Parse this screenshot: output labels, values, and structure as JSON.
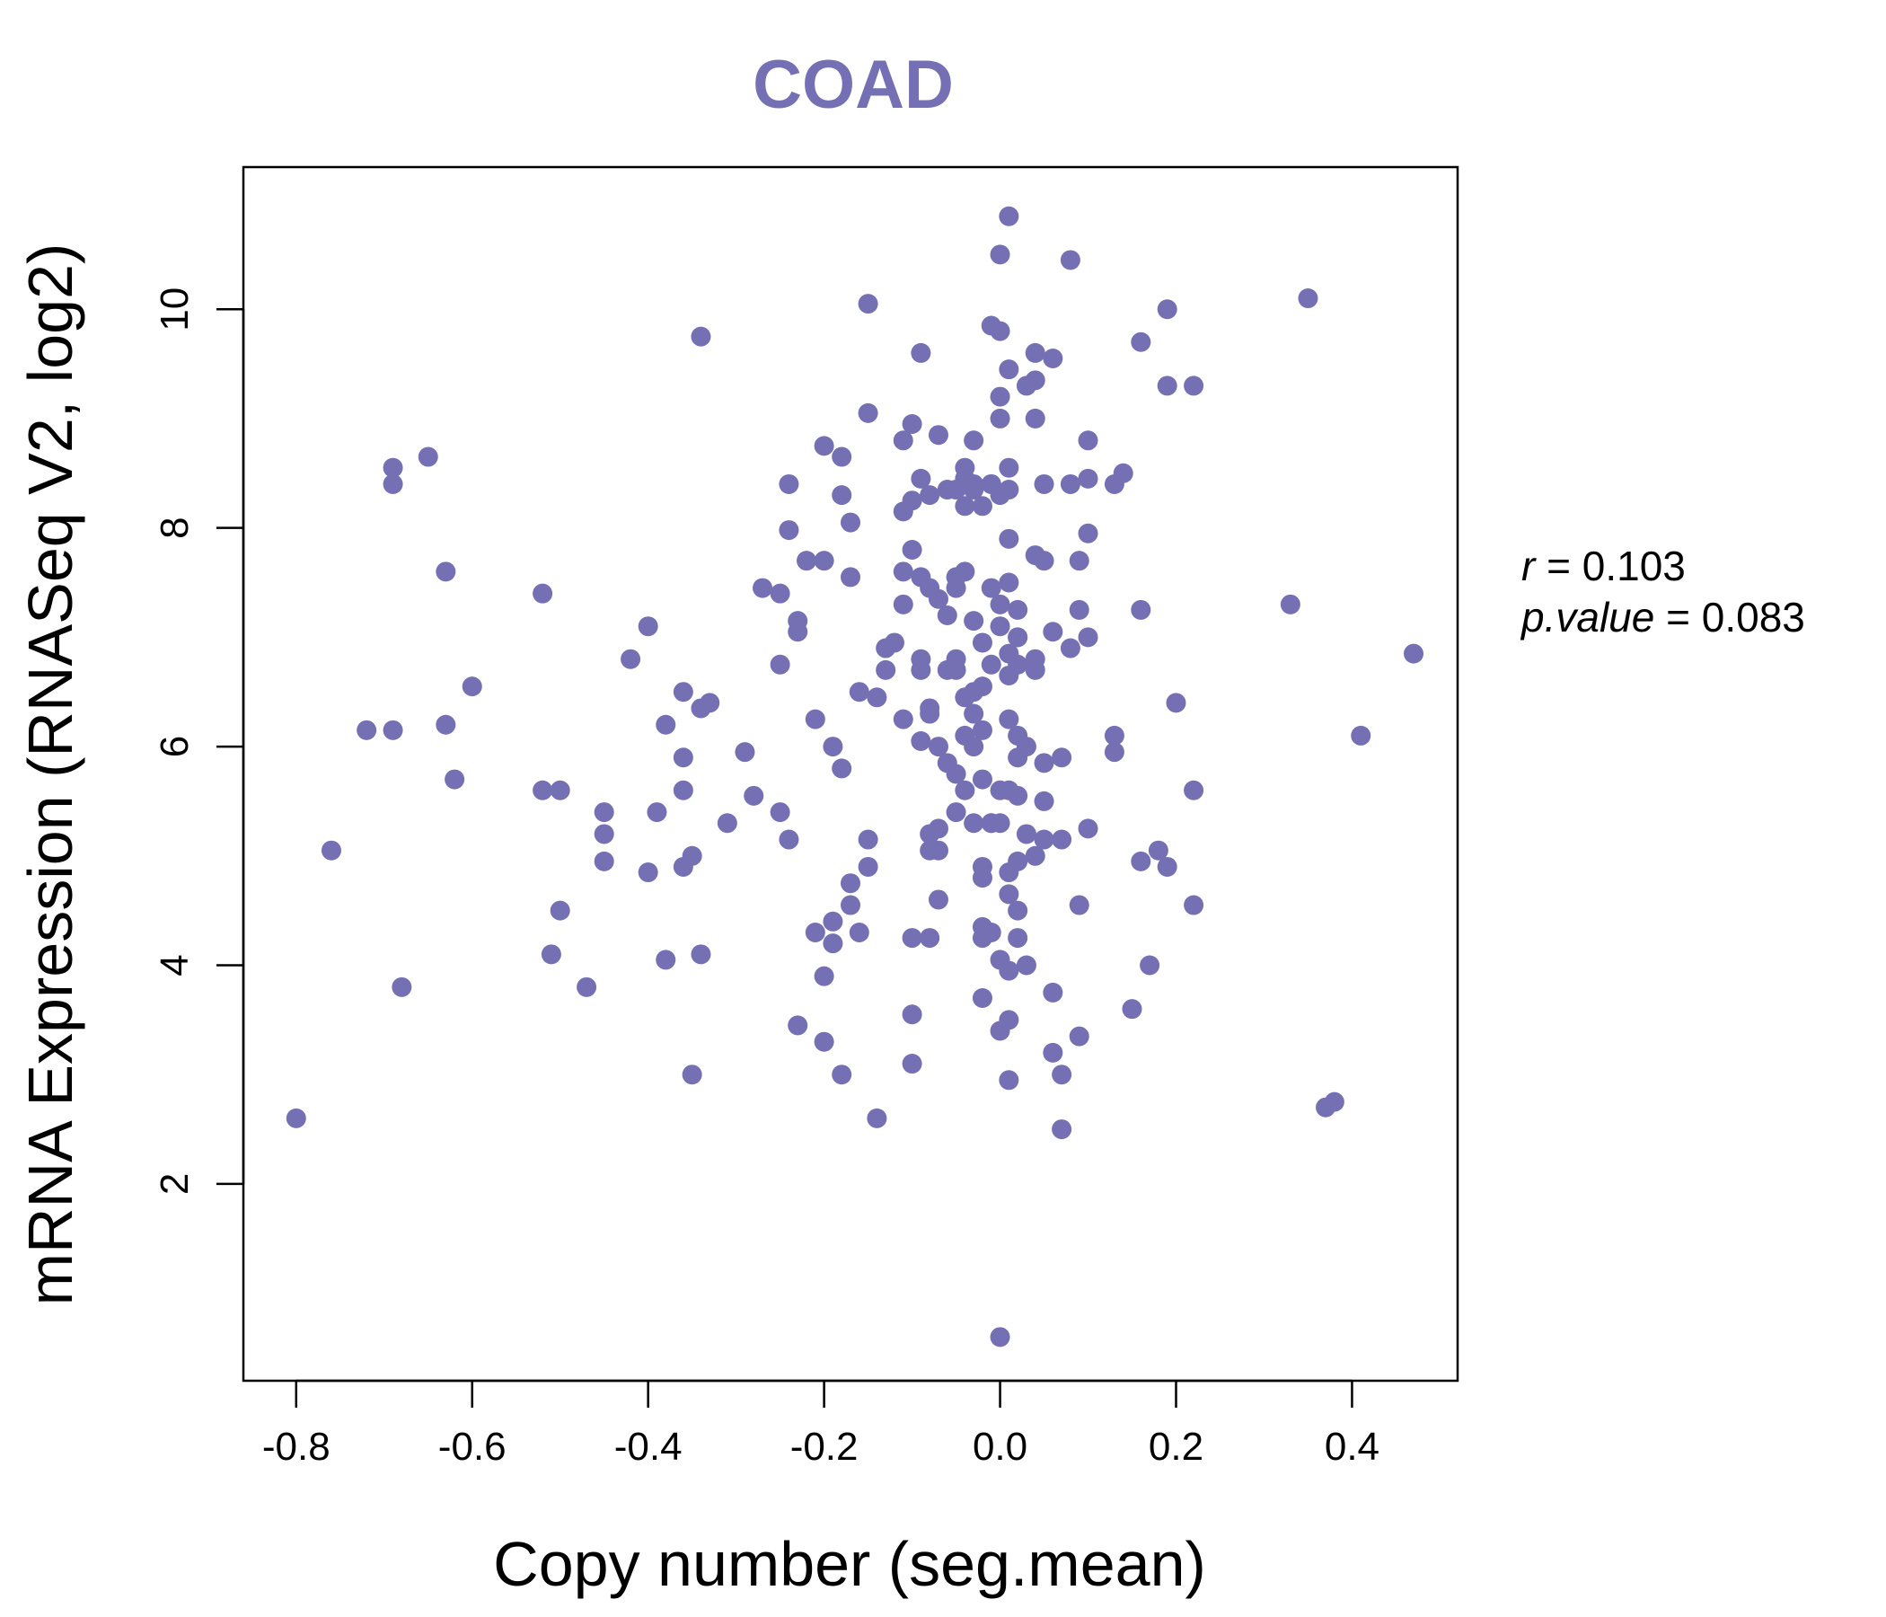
{
  "chart_data": {
    "type": "scatter",
    "title": "COAD",
    "xlabel": "Copy number (seg.mean)",
    "ylabel": "mRNA Expression (RNASeq V2, log2)",
    "xlim": [
      -0.86,
      0.52
    ],
    "ylim": [
      0.2,
      11.3
    ],
    "x_ticks": [
      -0.8,
      -0.6,
      -0.4,
      -0.2,
      0.0,
      0.2,
      0.4
    ],
    "x_tick_labels": [
      "-0.8",
      "-0.6",
      "-0.4",
      "-0.2",
      "0.0",
      "0.2",
      "0.4"
    ],
    "y_ticks": [
      2,
      4,
      6,
      8,
      10
    ],
    "y_tick_labels": [
      "2",
      "4",
      "6",
      "8",
      "10"
    ],
    "point_color": "#7570b3",
    "stats": {
      "r_label": "r",
      "r_value": "0.103",
      "p_label": "p.value",
      "p_value": "0.083"
    },
    "x": [
      -0.8,
      -0.76,
      -0.72,
      -0.69,
      -0.69,
      -0.69,
      -0.68,
      -0.65,
      -0.63,
      -0.63,
      -0.62,
      -0.6,
      -0.52,
      -0.52,
      -0.51,
      -0.5,
      -0.5,
      -0.47,
      -0.45,
      -0.45,
      -0.45,
      -0.42,
      -0.4,
      -0.4,
      -0.39,
      -0.38,
      -0.38,
      -0.36,
      -0.36,
      -0.36,
      -0.36,
      -0.35,
      -0.35,
      -0.34,
      -0.34,
      -0.34,
      -0.33,
      -0.31,
      -0.29,
      -0.28,
      -0.27,
      -0.25,
      -0.25,
      -0.25,
      -0.24,
      -0.24,
      -0.23,
      -0.23,
      -0.23,
      -0.24,
      -0.22,
      -0.21,
      -0.21,
      -0.2,
      -0.2,
      -0.2,
      -0.2,
      -0.19,
      -0.19,
      -0.19,
      -0.18,
      -0.18,
      -0.18,
      -0.18,
      -0.17,
      -0.17,
      -0.17,
      -0.17,
      -0.16,
      -0.16,
      -0.15,
      -0.15,
      -0.15,
      -0.15,
      -0.14,
      -0.14,
      -0.13,
      -0.13,
      -0.12,
      -0.11,
      -0.11,
      -0.11,
      -0.11,
      -0.11,
      -0.1,
      -0.1,
      -0.1,
      -0.1,
      -0.1,
      -0.1,
      -0.09,
      -0.09,
      -0.09,
      -0.09,
      -0.09,
      -0.09,
      -0.08,
      -0.08,
      -0.08,
      -0.08,
      -0.08,
      -0.08,
      -0.08,
      -0.07,
      -0.07,
      -0.07,
      -0.07,
      -0.07,
      -0.07,
      -0.06,
      -0.06,
      -0.06,
      -0.06,
      -0.05,
      -0.05,
      -0.05,
      -0.05,
      -0.05,
      -0.05,
      -0.05,
      -0.04,
      -0.04,
      -0.04,
      -0.04,
      -0.04,
      -0.04,
      -0.04,
      -0.03,
      -0.03,
      -0.03,
      -0.03,
      -0.03,
      -0.03,
      -0.03,
      -0.03,
      -0.02,
      -0.02,
      -0.02,
      -0.02,
      -0.02,
      -0.02,
      -0.02,
      -0.02,
      -0.02,
      -0.02,
      -0.01,
      -0.01,
      -0.01,
      -0.01,
      -0.01,
      -0.01,
      -0.01,
      -0.01,
      0.0,
      0.0,
      0.0,
      0.0,
      0.0,
      0.0,
      0.0,
      0.0,
      0.0,
      0.0,
      0.0,
      0.0,
      0.01,
      0.01,
      0.01,
      0.01,
      0.01,
      0.01,
      0.01,
      0.01,
      0.01,
      0.01,
      0.01,
      0.01,
      0.01,
      0.01,
      0.01,
      0.02,
      0.02,
      0.02,
      0.02,
      0.02,
      0.02,
      0.02,
      0.02,
      0.02,
      0.02,
      0.03,
      0.03,
      0.03,
      0.03,
      0.04,
      0.04,
      0.04,
      0.04,
      0.04,
      0.04,
      0.04,
      0.05,
      0.05,
      0.05,
      0.05,
      0.05,
      0.06,
      0.06,
      0.06,
      0.06,
      0.07,
      0.07,
      0.07,
      0.07,
      0.08,
      0.08,
      0.08,
      0.09,
      0.09,
      0.09,
      0.09,
      0.1,
      0.1,
      0.1,
      0.1,
      0.1,
      0.13,
      0.13,
      0.13,
      0.14,
      0.15,
      0.16,
      0.16,
      0.16,
      0.17,
      0.18,
      0.19,
      0.19,
      0.19,
      0.2,
      0.22,
      0.22,
      0.22,
      0.33,
      0.35,
      0.37,
      0.38,
      0.41,
      0.47
    ],
    "y": [
      2.6,
      5.05,
      6.15,
      6.15,
      8.4,
      8.55,
      3.8,
      8.65,
      6.2,
      7.6,
      5.7,
      6.55,
      7.4,
      5.6,
      4.1,
      5.6,
      4.5,
      3.8,
      5.4,
      5.2,
      4.95,
      6.8,
      7.1,
      4.85,
      5.4,
      6.2,
      4.05,
      6.5,
      5.9,
      5.6,
      4.9,
      5.0,
      3.0,
      9.75,
      6.35,
      4.1,
      6.4,
      5.3,
      5.95,
      5.55,
      7.45,
      7.4,
      6.75,
      5.4,
      5.15,
      8.4,
      3.45,
      7.05,
      7.15,
      7.98,
      7.7,
      6.25,
      4.3,
      7.7,
      8.75,
      3.3,
      3.9,
      6.0,
      4.2,
      4.4,
      8.3,
      8.65,
      5.8,
      3.0,
      7.55,
      8.05,
      4.55,
      4.75,
      4.3,
      6.5,
      10.05,
      9.05,
      5.15,
      4.9,
      2.6,
      6.45,
      6.9,
      6.7,
      6.95,
      8.8,
      7.6,
      7.3,
      6.25,
      8.15,
      8.95,
      7.8,
      8.25,
      3.55,
      4.25,
      3.1,
      8.45,
      7.55,
      6.7,
      6.05,
      9.6,
      6.8,
      8.3,
      7.45,
      6.35,
      6.3,
      5.2,
      4.25,
      5.05,
      8.85,
      7.35,
      6.0,
      5.25,
      4.6,
      5.05,
      7.2,
      6.7,
      5.85,
      8.35,
      7.55,
      6.7,
      6.8,
      8.35,
      7.45,
      5.75,
      5.4,
      8.55,
      8.2,
      7.6,
      6.1,
      6.45,
      5.6,
      8.45,
      8.8,
      6.5,
      6.3,
      6.0,
      5.3,
      8.35,
      7.15,
      8.4,
      6.55,
      6.15,
      5.7,
      4.9,
      4.8,
      4.35,
      4.25,
      3.7,
      8.2,
      6.95,
      5.3,
      8.4,
      9.85,
      7.45,
      6.75,
      5.3,
      4.3,
      8.4,
      7.3,
      7.1,
      5.6,
      10.5,
      9.2,
      9.0,
      8.3,
      5.3,
      4.05,
      3.4,
      0.6,
      9.8,
      9.45,
      7.9,
      7.5,
      6.85,
      6.65,
      6.25,
      5.6,
      4.85,
      4.65,
      3.95,
      3.5,
      2.95,
      10.85,
      8.35,
      8.55,
      7.0,
      7.25,
      6.1,
      5.55,
      4.25,
      7.0,
      6.75,
      5.9,
      4.95,
      4.5,
      4.0,
      9.3,
      5.2,
      6.0,
      6.8,
      5.0,
      9.6,
      9.35,
      9.0,
      7.75,
      6.7,
      5.85,
      8.4,
      7.7,
      5.5,
      5.15,
      3.75,
      9.55,
      7.05,
      3.2,
      5.9,
      5.15,
      3.0,
      2.5,
      10.45,
      8.4,
      6.9,
      3.35,
      4.55,
      7.7,
      7.25,
      8.8,
      8.45,
      7.95,
      7.0,
      5.25,
      6.1,
      5.95,
      8.4,
      8.5,
      3.6,
      9.7,
      7.25,
      4.95,
      4.0,
      5.05,
      9.3,
      10.0,
      4.9,
      6.4,
      9.3,
      5.6,
      4.55,
      7.3,
      10.1,
      2.7,
      2.75,
      6.1,
      6.85
    ]
  }
}
